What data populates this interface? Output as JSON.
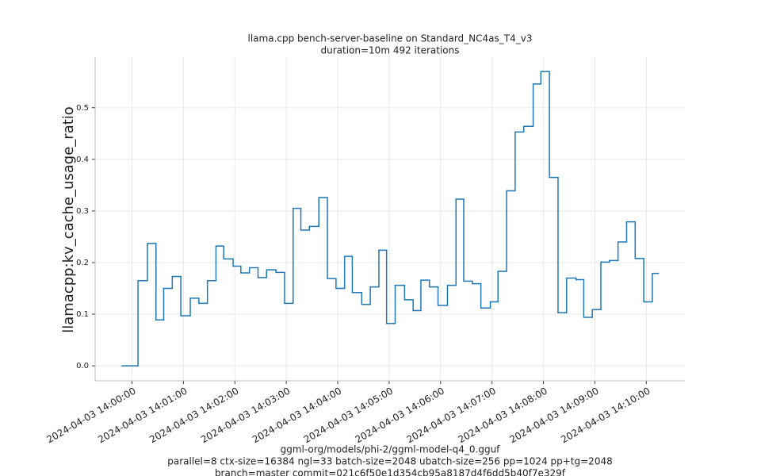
{
  "chart_data": {
    "type": "line",
    "step": "post",
    "title": "llama.cpp bench-server-baseline on Standard_NC4as_T4_v3",
    "subtitle": "duration=10m 492 iterations",
    "ylabel": "llamacpp:kv_cache_usage_ratio",
    "xlabel": [
      "ggml-org/models/phi-2/ggml-model-q4_0.gguf",
      "parallel=8 ctx-size=16384 ngl=33 batch-size=2048 ubatch-size=256 pp=1024 pp+tg=2048",
      "branch=master commit=021c6f50e1d354cb95a8187d4f6dd5b40f7e329f"
    ],
    "grid": true,
    "color": "#1f77b4",
    "xlim": [
      "2024-04-03 13:59:17",
      "2024-04-03 14:10:45"
    ],
    "xticks": [
      "2024-04-03 14:00:00",
      "2024-04-03 14:01:00",
      "2024-04-03 14:02:00",
      "2024-04-03 14:03:00",
      "2024-04-03 14:04:00",
      "2024-04-03 14:05:00",
      "2024-04-03 14:06:00",
      "2024-04-03 14:07:00",
      "2024-04-03 14:08:00",
      "2024-04-03 14:09:00",
      "2024-04-03 14:10:00"
    ],
    "ylim": [
      -0.029,
      0.598
    ],
    "yticks": [
      {
        "value": 0,
        "label": "0.0"
      },
      0.1,
      0.2,
      0.3,
      0.4,
      0.5
    ],
    "x": [
      "2024-04-03 13:59:48",
      "2024-04-03 14:00:07",
      "2024-04-03 14:00:18",
      "2024-04-03 14:00:28",
      "2024-04-03 14:00:37",
      "2024-04-03 14:00:47",
      "2024-04-03 14:00:57",
      "2024-04-03 14:01:08",
      "2024-04-03 14:01:18",
      "2024-04-03 14:01:28",
      "2024-04-03 14:01:38",
      "2024-04-03 14:01:47",
      "2024-04-03 14:01:58",
      "2024-04-03 14:02:07",
      "2024-04-03 14:02:17",
      "2024-04-03 14:02:27",
      "2024-04-03 14:02:37",
      "2024-04-03 14:02:48",
      "2024-04-03 14:02:58",
      "2024-04-03 14:03:08",
      "2024-04-03 14:03:17",
      "2024-04-03 14:03:27",
      "2024-04-03 14:03:38",
      "2024-04-03 14:03:48",
      "2024-04-03 14:03:58",
      "2024-04-03 14:04:08",
      "2024-04-03 14:04:17",
      "2024-04-03 14:04:28",
      "2024-04-03 14:04:38",
      "2024-04-03 14:04:48",
      "2024-04-03 14:04:57",
      "2024-04-03 14:05:07",
      "2024-04-03 14:05:18",
      "2024-04-03 14:05:28",
      "2024-04-03 14:05:37",
      "2024-04-03 14:05:47",
      "2024-04-03 14:05:57",
      "2024-04-03 14:06:08",
      "2024-04-03 14:06:18",
      "2024-04-03 14:06:27",
      "2024-04-03 14:06:37",
      "2024-04-03 14:06:47",
      "2024-04-03 14:06:58",
      "2024-04-03 14:07:07",
      "2024-04-03 14:07:17",
      "2024-04-03 14:07:27",
      "2024-04-03 14:07:37",
      "2024-04-03 14:07:48",
      "2024-04-03 14:07:57",
      "2024-04-03 14:08:07",
      "2024-04-03 14:08:17",
      "2024-04-03 14:08:27",
      "2024-04-03 14:08:38",
      "2024-04-03 14:08:47",
      "2024-04-03 14:08:57",
      "2024-04-03 14:09:07",
      "2024-04-03 14:09:17",
      "2024-04-03 14:09:27",
      "2024-04-03 14:09:37",
      "2024-04-03 14:09:47",
      "2024-04-03 14:09:57",
      "2024-04-03 14:10:07",
      "2024-04-03 14:10:14"
    ],
    "values": [
      0.0,
      0.165,
      0.237,
      0.089,
      0.15,
      0.173,
      0.097,
      0.131,
      0.121,
      0.165,
      0.232,
      0.207,
      0.193,
      0.18,
      0.19,
      0.171,
      0.186,
      0.181,
      0.121,
      0.305,
      0.263,
      0.27,
      0.326,
      0.169,
      0.15,
      0.212,
      0.142,
      0.119,
      0.153,
      0.224,
      0.082,
      0.156,
      0.128,
      0.107,
      0.166,
      0.153,
      0.117,
      0.156,
      0.323,
      0.164,
      0.159,
      0.112,
      0.124,
      0.183,
      0.339,
      0.453,
      0.464,
      0.546,
      0.57,
      0.365,
      0.103,
      0.17,
      0.167,
      0.094,
      0.109,
      0.201,
      0.204,
      0.24,
      0.279,
      0.208,
      0.124,
      0.179,
      0.179
    ]
  }
}
